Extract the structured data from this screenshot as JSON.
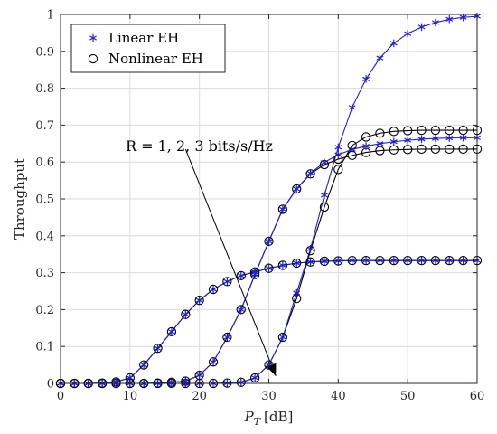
{
  "chart_data": {
    "type": "line",
    "xlabel_base": "P",
    "xlabel_sub": "T",
    "xlabel_unit": "[dB]",
    "ylabel": "Throughput",
    "xlim": [
      0,
      60
    ],
    "ylim": [
      0,
      1
    ],
    "x_ticks": [
      0,
      10,
      20,
      30,
      40,
      50,
      60
    ],
    "y_ticks": [
      0,
      0.1,
      0.2,
      0.3,
      0.4,
      0.5,
      0.6,
      0.7,
      0.8,
      0.9,
      1
    ],
    "grid": true,
    "legend_position": "top-left",
    "annotation": {
      "text": "R = 1, 2, 3 bits/s/Hz",
      "arrow_from": [
        18,
        0.635
      ],
      "arrow_to": [
        31,
        0.02
      ]
    },
    "series": [
      {
        "name": "Linear EH",
        "style": "linear",
        "marker": "asterisk",
        "color": "#1f1fd6",
        "curves": [
          {
            "label": "R = 1",
            "x": [
              0,
              2,
              4,
              6,
              8,
              10,
              12,
              14,
              16,
              18,
              20,
              22,
              24,
              26,
              28,
              30,
              32,
              34,
              36,
              38,
              40,
              42,
              44,
              46,
              48,
              50,
              52,
              54,
              56,
              58,
              60
            ],
            "y": [
              0,
              0,
              0,
              0.001,
              0.004,
              0.015,
              0.05,
              0.095,
              0.14,
              0.187,
              0.225,
              0.255,
              0.276,
              0.292,
              0.302,
              0.312,
              0.32,
              0.326,
              0.329,
              0.331,
              0.332,
              0.333,
              0.333,
              0.333,
              0.333,
              0.333,
              0.333,
              0.333,
              0.333,
              0.333,
              0.333
            ]
          },
          {
            "label": "R = 2",
            "x": [
              0,
              2,
              4,
              6,
              8,
              10,
              12,
              14,
              16,
              18,
              20,
              22,
              24,
              26,
              28,
              30,
              32,
              34,
              36,
              38,
              40,
              42,
              44,
              46,
              48,
              50,
              52,
              54,
              56,
              58,
              60
            ],
            "y": [
              0,
              0,
              0,
              0,
              0,
              0,
              0,
              0.001,
              0.003,
              0.006,
              0.022,
              0.058,
              0.125,
              0.2,
              0.295,
              0.385,
              0.472,
              0.527,
              0.57,
              0.599,
              0.62,
              0.634,
              0.643,
              0.65,
              0.655,
              0.659,
              0.662,
              0.664,
              0.665,
              0.666,
              0.666
            ]
          },
          {
            "label": "R = 3",
            "x": [
              0,
              2,
              4,
              6,
              8,
              10,
              12,
              14,
              16,
              18,
              20,
              22,
              24,
              26,
              28,
              30,
              32,
              34,
              36,
              38,
              40,
              42,
              44,
              46,
              48,
              50,
              52,
              54,
              56,
              58,
              60
            ],
            "y": [
              0,
              0,
              0,
              0,
              0,
              0,
              0,
              0,
              0,
              0,
              0,
              0,
              0.001,
              0.003,
              0.015,
              0.05,
              0.125,
              0.245,
              0.365,
              0.51,
              0.64,
              0.748,
              0.825,
              0.882,
              0.922,
              0.948,
              0.966,
              0.978,
              0.987,
              0.992,
              0.995
            ]
          }
        ]
      },
      {
        "name": "Nonlinear EH",
        "style": "nonlinear",
        "marker": "circle",
        "color": "#000000",
        "curves": [
          {
            "label": "R = 1",
            "x": [
              0,
              2,
              4,
              6,
              8,
              10,
              12,
              14,
              16,
              18,
              20,
              22,
              24,
              26,
              28,
              30,
              32,
              34,
              36,
              38,
              40,
              42,
              44,
              46,
              48,
              50,
              52,
              54,
              56,
              58,
              60
            ],
            "y": [
              0,
              0,
              0,
              0.001,
              0.004,
              0.015,
              0.05,
              0.095,
              0.14,
              0.187,
              0.225,
              0.255,
              0.276,
              0.292,
              0.302,
              0.312,
              0.32,
              0.326,
              0.329,
              0.331,
              0.332,
              0.333,
              0.333,
              0.333,
              0.333,
              0.333,
              0.333,
              0.333,
              0.333,
              0.333,
              0.333
            ]
          },
          {
            "label": "R = 2",
            "x": [
              0,
              2,
              4,
              6,
              8,
              10,
              12,
              14,
              16,
              18,
              20,
              22,
              24,
              26,
              28,
              30,
              32,
              34,
              36,
              38,
              40,
              42,
              44,
              46,
              48,
              50,
              52,
              54,
              56,
              58,
              60
            ],
            "y": [
              0,
              0,
              0,
              0,
              0,
              0,
              0,
              0.001,
              0.003,
              0.006,
              0.022,
              0.058,
              0.125,
              0.2,
              0.295,
              0.385,
              0.472,
              0.527,
              0.568,
              0.593,
              0.608,
              0.618,
              0.626,
              0.631,
              0.633,
              0.634,
              0.635,
              0.635,
              0.635,
              0.635,
              0.635
            ]
          },
          {
            "label": "R = 3",
            "x": [
              0,
              2,
              4,
              6,
              8,
              10,
              12,
              14,
              16,
              18,
              20,
              22,
              24,
              26,
              28,
              30,
              32,
              34,
              36,
              38,
              40,
              42,
              44,
              46,
              48,
              50,
              52,
              54,
              56,
              58,
              60
            ],
            "y": [
              0,
              0,
              0,
              0,
              0,
              0,
              0,
              0,
              0,
              0,
              0,
              0,
              0.001,
              0.003,
              0.015,
              0.05,
              0.125,
              0.23,
              0.36,
              0.478,
              0.58,
              0.645,
              0.668,
              0.678,
              0.683,
              0.685,
              0.686,
              0.686,
              0.686,
              0.686,
              0.686
            ]
          }
        ]
      }
    ]
  }
}
